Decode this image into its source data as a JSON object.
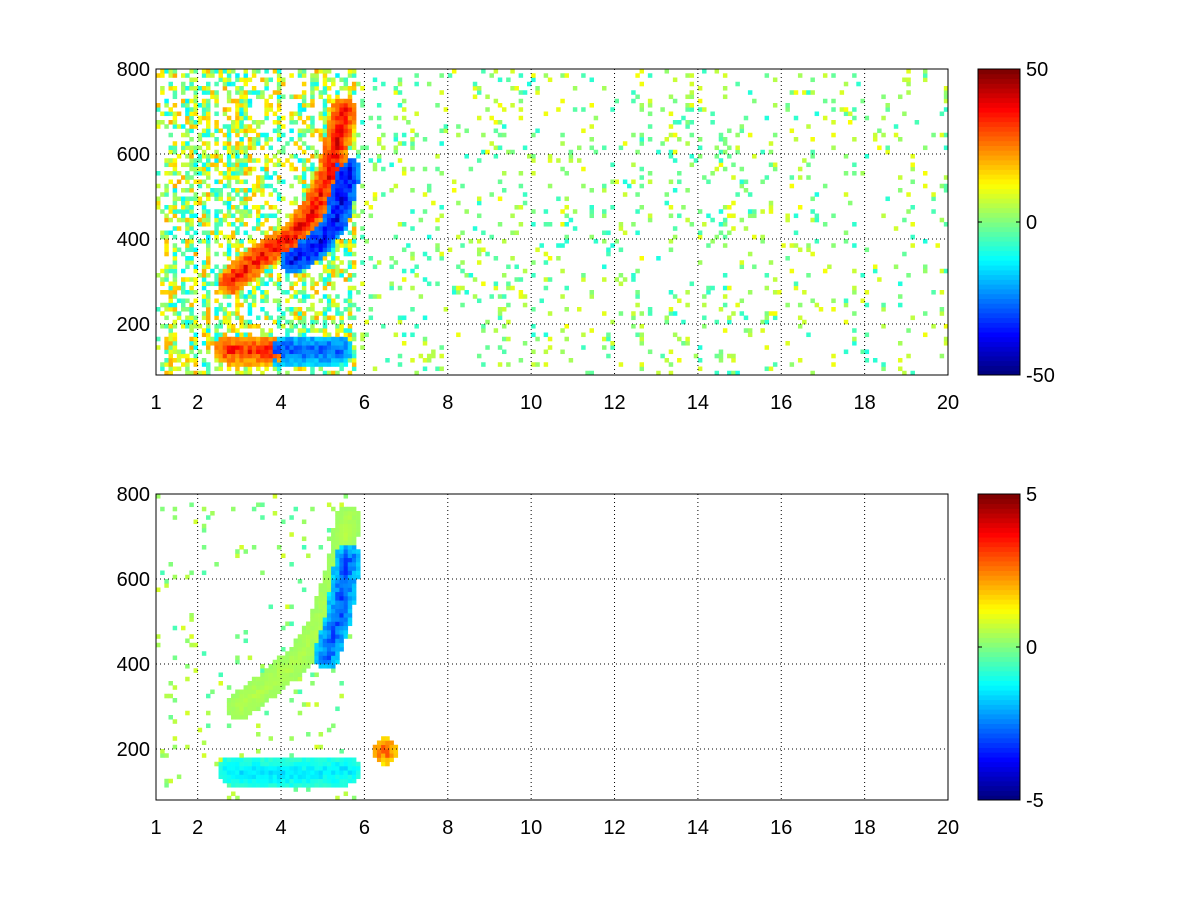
{
  "chart_data": [
    {
      "type": "heatmap",
      "title": "",
      "xlabel": "",
      "ylabel": "",
      "xlim": [
        1,
        20
      ],
      "ylim": [
        80,
        800
      ],
      "x_ticks": [
        1,
        2,
        4,
        6,
        8,
        10,
        12,
        14,
        16,
        18,
        20
      ],
      "y_ticks": [
        200,
        400,
        600,
        800
      ],
      "grid": true,
      "colormap": "jet",
      "colorbar": {
        "min": -50,
        "max": 50,
        "ticks": [
          50,
          0,
          -50
        ]
      },
      "features": [
        {
          "name": "rising-ridge",
          "sign": "positive",
          "points": [
            [
              2.8,
              300
            ],
            [
              3.5,
              360
            ],
            [
              4.2,
              400
            ],
            [
              4.8,
              470
            ],
            [
              5.2,
              560
            ],
            [
              5.5,
              700
            ]
          ],
          "value": 38
        },
        {
          "name": "rising-trough",
          "sign": "negative",
          "points": [
            [
              4.3,
              350
            ],
            [
              4.9,
              390
            ],
            [
              5.3,
              440
            ],
            [
              5.6,
              560
            ]
          ],
          "value": -40
        },
        {
          "name": "low-band",
          "sign": "positive",
          "points": [
            [
              2.7,
              140
            ],
            [
              3.2,
              138
            ],
            [
              3.7,
              138
            ]
          ],
          "value": 35
        },
        {
          "name": "low-band-negative",
          "sign": "negative",
          "points": [
            [
              3.8,
              140
            ],
            [
              4.6,
              140
            ],
            [
              5.4,
              140
            ]
          ],
          "value": -30
        }
      ]
    },
    {
      "type": "heatmap",
      "title": "",
      "xlabel": "",
      "ylabel": "",
      "xlim": [
        1,
        20
      ],
      "ylim": [
        80,
        800
      ],
      "x_ticks": [
        1,
        2,
        4,
        6,
        8,
        10,
        12,
        14,
        16,
        18,
        20
      ],
      "y_ticks": [
        200,
        400,
        600,
        800
      ],
      "grid": true,
      "colormap": "jet",
      "colorbar": {
        "min": -5,
        "max": 5,
        "ticks": [
          5,
          0,
          -5
        ]
      },
      "features": [
        {
          "name": "rising-band",
          "sign": "mixed",
          "points": [
            [
              3.0,
              300
            ],
            [
              3.8,
              360
            ],
            [
              4.5,
              420
            ],
            [
              5.0,
              500
            ],
            [
              5.4,
              620
            ],
            [
              5.6,
              740
            ]
          ],
          "value": 0.5
        },
        {
          "name": "rising-trough",
          "sign": "negative",
          "points": [
            [
              5.1,
              420
            ],
            [
              5.4,
              520
            ],
            [
              5.6,
              650
            ]
          ],
          "value": -3
        },
        {
          "name": "low-band",
          "sign": "negative",
          "points": [
            [
              2.8,
              150
            ],
            [
              3.8,
              140
            ],
            [
              4.8,
              145
            ],
            [
              5.6,
              150
            ]
          ],
          "value": -1.5
        },
        {
          "name": "hotspot",
          "sign": "positive",
          "points": [
            [
              6.5,
              195
            ]
          ],
          "value": 3
        }
      ]
    }
  ]
}
